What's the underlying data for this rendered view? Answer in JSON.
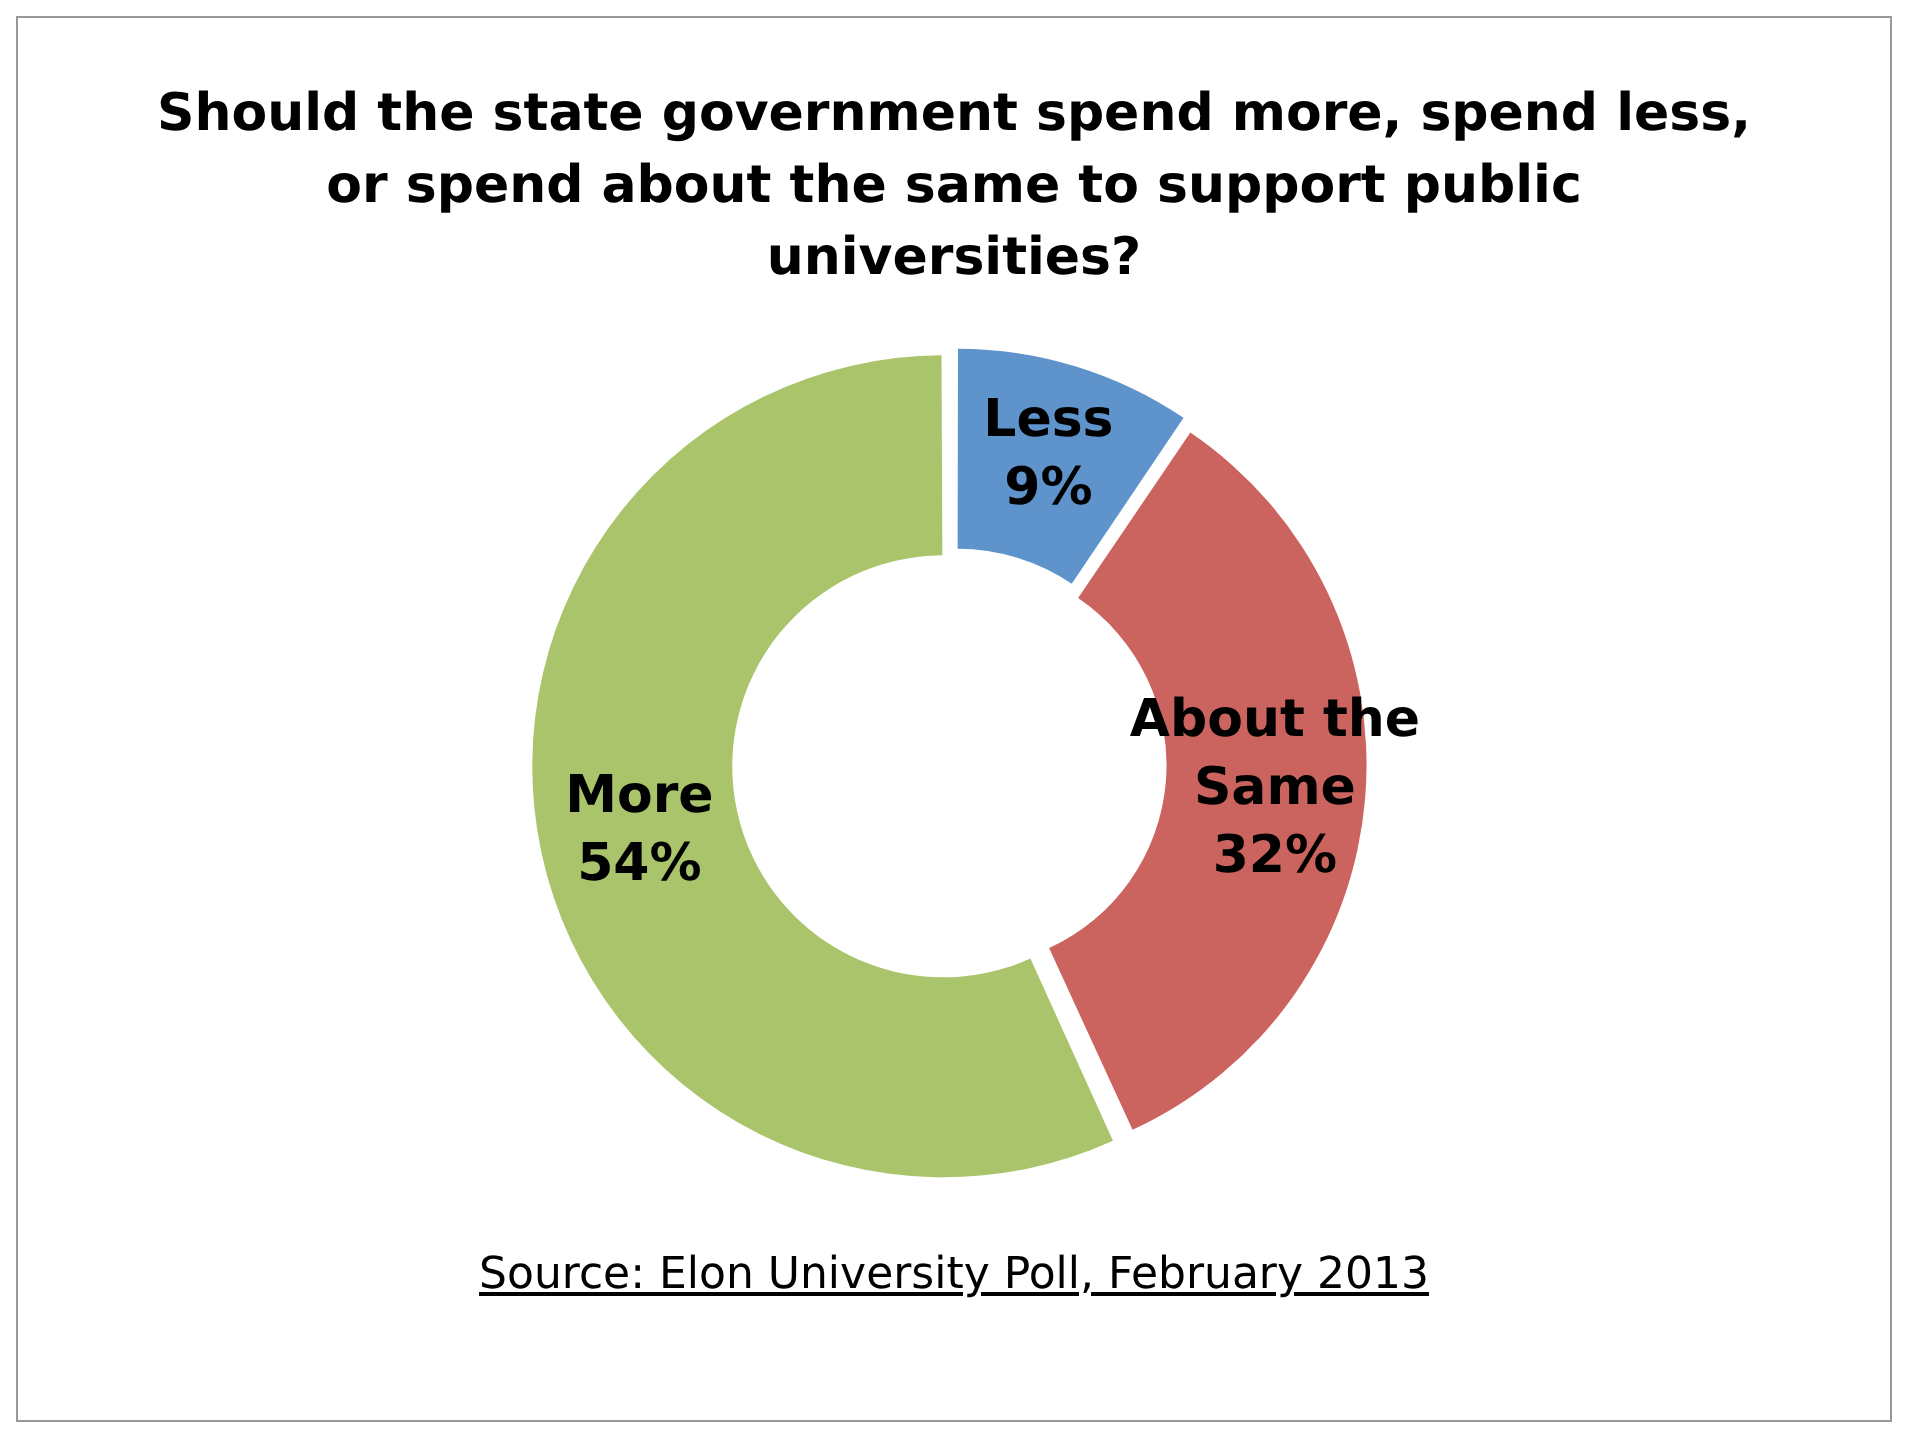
{
  "chart_data": {
    "type": "donut",
    "title": "Should the state government spend more, spend less, or spend about the same to support public universities?",
    "categories": [
      "Less",
      "About the Same",
      "More"
    ],
    "values": [
      9,
      32,
      54
    ],
    "value_labels": [
      "9%",
      "32%",
      "54%"
    ],
    "colors": [
      "#5f93cb",
      "#cb645f",
      "#a9c46b"
    ],
    "legend": false,
    "annotations": [
      "Source: Elon University Poll, February 2013"
    ]
  }
}
